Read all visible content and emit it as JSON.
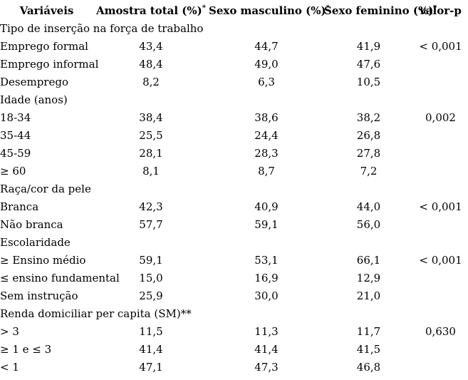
{
  "table": {
    "columns": [
      {
        "label": "Variáveis",
        "sup": ""
      },
      {
        "label": "Amostra total (%)",
        "sup": "*"
      },
      {
        "label": "Sexo masculino (%)",
        "sup": "*"
      },
      {
        "label": "Sexo feminino (%)",
        "sup": "*"
      },
      {
        "label": "valor-p",
        "sup": ""
      }
    ],
    "rows": [
      {
        "type": "section",
        "label": "Tipo de inserção na força de trabalho"
      },
      {
        "type": "data",
        "label": "Emprego formal",
        "total": "43,4",
        "male": "44,7",
        "female": "41,9",
        "p": "< 0,001"
      },
      {
        "type": "data",
        "label": "Emprego informal",
        "total": "48,4",
        "male": "49,0",
        "female": "47,6",
        "p": ""
      },
      {
        "type": "data",
        "label": "Desemprego",
        "total": "8,2",
        "male": "6,3",
        "female": "10,5",
        "p": ""
      },
      {
        "type": "section",
        "label": "Idade (anos)"
      },
      {
        "type": "data",
        "label": "18-34",
        "total": "38,4",
        "male": "38,6",
        "female": "38,2",
        "p": "0,002"
      },
      {
        "type": "data",
        "label": "35-44",
        "total": "25,5",
        "male": "24,4",
        "female": "26,8",
        "p": ""
      },
      {
        "type": "data",
        "label": "45-59",
        "total": "28,1",
        "male": "28,3",
        "female": "27,8",
        "p": ""
      },
      {
        "type": "data",
        "label": "≥ 60",
        "total": "8,1",
        "male": "8,7",
        "female": "7,2",
        "p": ""
      },
      {
        "type": "section",
        "label": "Raça/cor da pele"
      },
      {
        "type": "data",
        "label": "Branca",
        "total": "42,3",
        "male": "40,9",
        "female": "44,0",
        "p": "< 0,001"
      },
      {
        "type": "data",
        "label": "Não branca",
        "total": "57,7",
        "male": "59,1",
        "female": "56,0",
        "p": ""
      },
      {
        "type": "section",
        "label": "Escolaridade"
      },
      {
        "type": "data",
        "label": "≥ Ensino médio",
        "total": "59,1",
        "male": "53,1",
        "female": "66,1",
        "p": "< 0,001"
      },
      {
        "type": "data",
        "label": "≤ ensino fundamental",
        "total": "15,0",
        "male": "16,9",
        "female": "12,9",
        "p": ""
      },
      {
        "type": "data",
        "label": "Sem instrução",
        "total": "25,9",
        "male": "30,0",
        "female": "21,0",
        "p": ""
      },
      {
        "type": "section",
        "label": "Renda domiciliar per capita (SM)**"
      },
      {
        "type": "data",
        "label": "> 3",
        "total": "11,5",
        "male": "11,3",
        "female": "11,7",
        "p": "0,630"
      },
      {
        "type": "data",
        "label": "≥ 1 e ≤ 3",
        "total": "41,4",
        "male": "41,4",
        "female": "41,5",
        "p": ""
      },
      {
        "type": "data",
        "label": "< 1",
        "total": "47,1",
        "male": "47,3",
        "female": "46,8",
        "p": ""
      }
    ]
  },
  "colors": {
    "text": "#000000",
    "background": "#ffffff"
  }
}
